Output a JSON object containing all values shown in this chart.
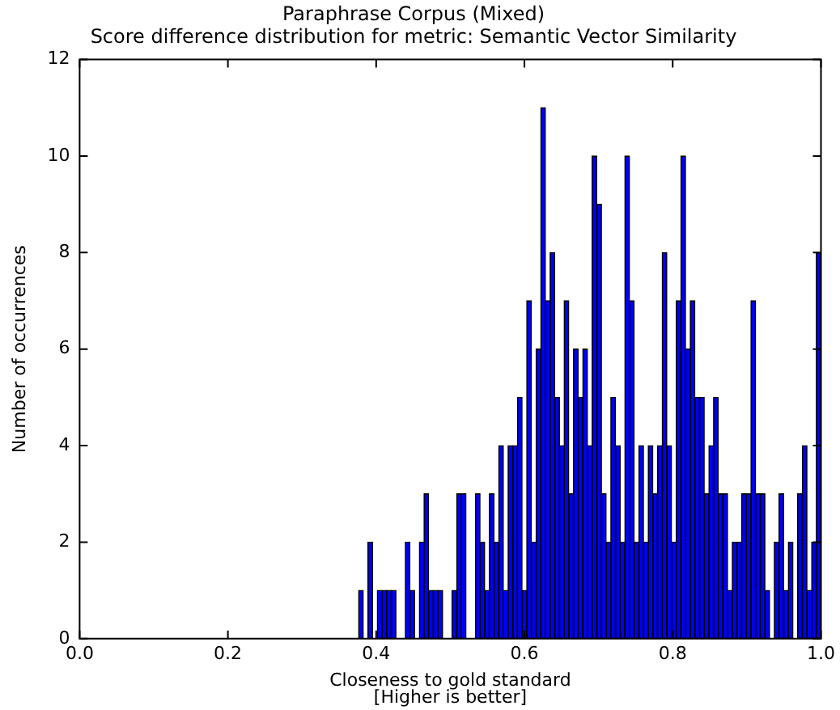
{
  "chart_data": {
    "type": "histogram",
    "title": "Paraphrase Corpus (Mixed)",
    "subtitle": "Score difference distribution for metric: Semantic Vector Similarity",
    "xlabel": "Closeness to gold standard\n[Higher is better]",
    "ylabel": "Number of occurrences",
    "bins": [
      0.3763,
      0.3826,
      0.3889,
      0.3952,
      0.4015,
      0.4078,
      0.4141,
      0.4204,
      0.4267,
      0.433,
      0.4393,
      0.4456,
      0.4519,
      0.4582,
      0.4645,
      0.4708,
      0.4771,
      0.4834,
      0.4897,
      0.496,
      0.5023,
      0.5086,
      0.5149,
      0.5212,
      0.5275,
      0.5338,
      0.5401,
      0.5464,
      0.5527,
      0.559,
      0.5653,
      0.5716,
      0.5779,
      0.5842,
      0.5905,
      0.5968,
      0.6031,
      0.6094,
      0.6157,
      0.622,
      0.6283,
      0.6346,
      0.6409,
      0.6472,
      0.6535,
      0.6598,
      0.6661,
      0.6724,
      0.6787,
      0.685,
      0.6913,
      0.6976,
      0.7039,
      0.7102,
      0.7165,
      0.7228,
      0.7291,
      0.7354,
      0.7417,
      0.748,
      0.7543,
      0.7606,
      0.7669,
      0.7732,
      0.7795,
      0.7858,
      0.7921,
      0.7984,
      0.8047,
      0.811,
      0.8173,
      0.8236,
      0.8299,
      0.8362,
      0.8425,
      0.8488,
      0.8551,
      0.8614,
      0.8677,
      0.874,
      0.8803,
      0.8866,
      0.8929,
      0.8992,
      0.9055,
      0.9118,
      0.9181,
      0.9244,
      0.9307,
      0.937,
      0.9433,
      0.9496,
      0.9559,
      0.9622,
      0.9685,
      0.9748,
      0.9811,
      0.9874,
      0.9937,
      1.0
    ],
    "values": [
      1,
      0,
      2,
      0,
      1,
      1,
      1,
      1,
      0,
      0,
      2,
      1,
      0,
      2,
      3,
      1,
      1,
      1,
      0,
      0,
      1,
      3,
      3,
      0,
      0,
      3,
      2,
      1,
      3,
      2,
      4,
      1,
      4,
      4,
      5,
      1,
      7,
      2,
      6,
      11,
      7,
      8,
      5,
      4,
      7,
      3,
      6,
      5,
      6,
      4,
      10,
      9,
      3,
      2,
      5,
      4,
      2,
      10,
      7,
      2,
      4,
      2,
      4,
      3,
      4,
      8,
      4,
      2,
      7,
      10,
      6,
      7,
      5,
      5,
      3,
      4,
      5,
      3,
      3,
      1,
      2,
      2,
      3,
      3,
      7,
      3,
      3,
      1,
      0,
      2,
      3,
      1,
      2,
      0,
      3,
      4,
      1,
      2,
      8
    ],
    "color": "#0000ff",
    "xlim": [
      0,
      1
    ],
    "xticks": [
      {
        "value": 0,
        "label": "0.0"
      },
      0.2,
      0.4,
      0.6,
      0.8,
      {
        "value": 1,
        "label": "1.0"
      }
    ],
    "ylim": [
      0,
      12
    ],
    "yticks": [
      0,
      2,
      4,
      6,
      8,
      10,
      12
    ],
    "grid": false
  }
}
